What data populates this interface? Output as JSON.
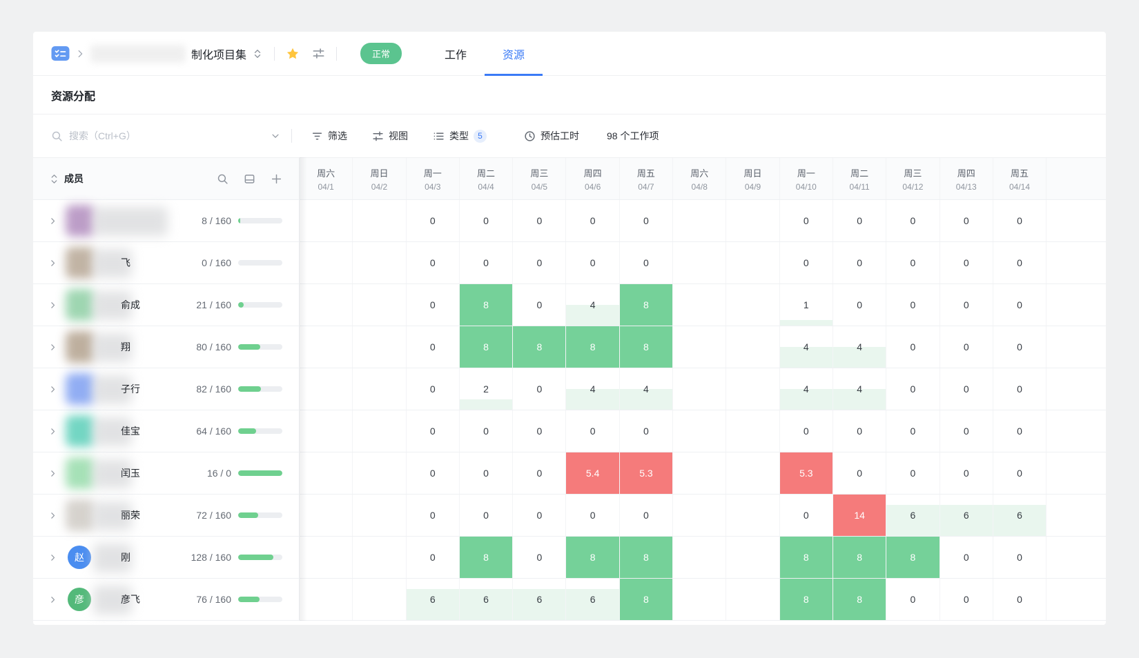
{
  "colors": {
    "blue": "#3a7af6",
    "green_cell": "#75d199",
    "red_cell": "#f57b7b",
    "tint_green": "#e9f6ee",
    "pill_green": "#5bc48f",
    "progress_green": "#6fd08f",
    "star_yellow": "#ffc53d"
  },
  "topbar": {
    "project_icon": "project-set-icon",
    "project_title": "制化项目集",
    "status_label": "正常",
    "tabs": [
      {
        "label": "工作"
      },
      {
        "label": "资源"
      }
    ]
  },
  "section": {
    "title": "资源分配"
  },
  "toolbar": {
    "search_placeholder": "搜索（Ctrl+G）",
    "filter": "筛选",
    "view": "视图",
    "type": "类型",
    "type_badge": "5",
    "estimate": "预估工时",
    "work_items": "98 个工作项"
  },
  "table": {
    "member_header": "成员",
    "columns": [
      {
        "weekday": "周六",
        "date": "04/1",
        "weekend": true
      },
      {
        "weekday": "周日",
        "date": "04/2",
        "weekend": true
      },
      {
        "weekday": "周一",
        "date": "04/3",
        "weekend": false
      },
      {
        "weekday": "周二",
        "date": "04/4",
        "weekend": false
      },
      {
        "weekday": "周三",
        "date": "04/5",
        "weekend": false
      },
      {
        "weekday": "周四",
        "date": "04/6",
        "weekend": false
      },
      {
        "weekday": "周五",
        "date": "04/7",
        "weekend": false
      },
      {
        "weekday": "周六",
        "date": "04/8",
        "weekend": true
      },
      {
        "weekday": "周日",
        "date": "04/9",
        "weekend": true
      },
      {
        "weekday": "周一",
        "date": "04/10",
        "weekend": false
      },
      {
        "weekday": "周二",
        "date": "04/11",
        "weekend": false
      },
      {
        "weekday": "周三",
        "date": "04/12",
        "weekend": false
      },
      {
        "weekday": "周四",
        "date": "04/13",
        "weekend": false
      },
      {
        "weekday": "周五",
        "date": "04/14",
        "weekend": false
      }
    ],
    "members": [
      {
        "name": "",
        "alloc": "8 / 160",
        "progress": 5,
        "avatar": {
          "kind": "block",
          "color": "#b18cbe"
        },
        "cells": [
          [
            "e"
          ],
          [
            "e"
          ],
          [
            "z",
            "0"
          ],
          [
            "z",
            "0"
          ],
          [
            "z",
            "0"
          ],
          [
            "z",
            "0"
          ],
          [
            "z",
            "0"
          ],
          [
            "e"
          ],
          [
            "e"
          ],
          [
            "z",
            "0"
          ],
          [
            "z",
            "0"
          ],
          [
            "z",
            "0"
          ],
          [
            "z",
            "0"
          ],
          [
            "z",
            "0"
          ]
        ]
      },
      {
        "name": "飞",
        "alloc": "0 / 160",
        "progress": 0,
        "avatar": {
          "kind": "block",
          "color": "#b7a795"
        },
        "cells": [
          [
            "e"
          ],
          [
            "e"
          ],
          [
            "z",
            "0"
          ],
          [
            "z",
            "0"
          ],
          [
            "z",
            "0"
          ],
          [
            "z",
            "0"
          ],
          [
            "z",
            "0"
          ],
          [
            "e"
          ],
          [
            "e"
          ],
          [
            "z",
            "0"
          ],
          [
            "z",
            "0"
          ],
          [
            "z",
            "0"
          ],
          [
            "z",
            "0"
          ],
          [
            "z",
            "0"
          ]
        ]
      },
      {
        "name": "俞成",
        "alloc": "21 / 160",
        "progress": 13,
        "avatar": {
          "kind": "block",
          "color": "#8ecfa4"
        },
        "cells": [
          [
            "e"
          ],
          [
            "e"
          ],
          [
            "z",
            "0"
          ],
          [
            "f",
            "8"
          ],
          [
            "z",
            "0"
          ],
          [
            "p",
            "4",
            0.5
          ],
          [
            "f",
            "8"
          ],
          [
            "e"
          ],
          [
            "e"
          ],
          [
            "p",
            "1",
            0.125
          ],
          [
            "z",
            "0"
          ],
          [
            "z",
            "0"
          ],
          [
            "z",
            "0"
          ],
          [
            "z",
            "0"
          ]
        ]
      },
      {
        "name": "翔",
        "alloc": "80 / 160",
        "progress": 50,
        "avatar": {
          "kind": "block",
          "color": "#b3a28e"
        },
        "cells": [
          [
            "e"
          ],
          [
            "e"
          ],
          [
            "z",
            "0"
          ],
          [
            "f",
            "8"
          ],
          [
            "f",
            "8"
          ],
          [
            "f",
            "8"
          ],
          [
            "f",
            "8"
          ],
          [
            "e"
          ],
          [
            "e"
          ],
          [
            "p",
            "4",
            0.5
          ],
          [
            "p",
            "4",
            0.5
          ],
          [
            "z",
            "0"
          ],
          [
            "z",
            "0"
          ],
          [
            "z",
            "0"
          ]
        ]
      },
      {
        "name": "子行",
        "alloc": "82 / 160",
        "progress": 51,
        "avatar": {
          "kind": "block",
          "color": "#7e9ff1"
        },
        "cells": [
          [
            "e"
          ],
          [
            "e"
          ],
          [
            "z",
            "0"
          ],
          [
            "p",
            "2",
            0.25
          ],
          [
            "z",
            "0"
          ],
          [
            "p",
            "4",
            0.5
          ],
          [
            "p",
            "4",
            0.5
          ],
          [
            "e"
          ],
          [
            "e"
          ],
          [
            "p",
            "4",
            0.5
          ],
          [
            "p",
            "4",
            0.5
          ],
          [
            "z",
            "0"
          ],
          [
            "z",
            "0"
          ],
          [
            "z",
            "0"
          ]
        ]
      },
      {
        "name": "佳宝",
        "alloc": "64 / 160",
        "progress": 40,
        "avatar": {
          "kind": "block",
          "color": "#5bcfb9"
        },
        "cells": [
          [
            "e"
          ],
          [
            "e"
          ],
          [
            "z",
            "0"
          ],
          [
            "z",
            "0"
          ],
          [
            "z",
            "0"
          ],
          [
            "z",
            "0"
          ],
          [
            "z",
            "0"
          ],
          [
            "e"
          ],
          [
            "e"
          ],
          [
            "z",
            "0"
          ],
          [
            "z",
            "0"
          ],
          [
            "z",
            "0"
          ],
          [
            "z",
            "0"
          ],
          [
            "z",
            "0"
          ]
        ]
      },
      {
        "name": "闰玉",
        "alloc": "16 / 0",
        "progress": 100,
        "avatar": {
          "kind": "block",
          "color": "#97dcab"
        },
        "cells": [
          [
            "e"
          ],
          [
            "e"
          ],
          [
            "z",
            "0"
          ],
          [
            "z",
            "0"
          ],
          [
            "z",
            "0"
          ],
          [
            "o",
            "5.4"
          ],
          [
            "o",
            "5.3"
          ],
          [
            "e"
          ],
          [
            "e"
          ],
          [
            "o",
            "5.3"
          ],
          [
            "z",
            "0"
          ],
          [
            "z",
            "0"
          ],
          [
            "z",
            "0"
          ],
          [
            "z",
            "0"
          ]
        ]
      },
      {
        "name": "丽荣",
        "alloc": "72 / 160",
        "progress": 45,
        "avatar": {
          "kind": "block",
          "color": "#cfcbc5"
        },
        "cells": [
          [
            "e"
          ],
          [
            "e"
          ],
          [
            "z",
            "0"
          ],
          [
            "z",
            "0"
          ],
          [
            "z",
            "0"
          ],
          [
            "z",
            "0"
          ],
          [
            "z",
            "0"
          ],
          [
            "e"
          ],
          [
            "e"
          ],
          [
            "z",
            "0"
          ],
          [
            "o",
            "14"
          ],
          [
            "p",
            "6",
            0.75
          ],
          [
            "p",
            "6",
            0.75
          ],
          [
            "p",
            "6",
            0.75
          ]
        ]
      },
      {
        "name": "刚",
        "alloc": "128 / 160",
        "progress": 80,
        "avatar": {
          "kind": "circle",
          "color": "#4a8df0",
          "label": "赵"
        },
        "cells": [
          [
            "e"
          ],
          [
            "e"
          ],
          [
            "z",
            "0"
          ],
          [
            "f",
            "8"
          ],
          [
            "z",
            "0"
          ],
          [
            "f",
            "8"
          ],
          [
            "f",
            "8"
          ],
          [
            "e"
          ],
          [
            "e"
          ],
          [
            "f",
            "8"
          ],
          [
            "f",
            "8"
          ],
          [
            "f",
            "8"
          ],
          [
            "z",
            "0"
          ],
          [
            "z",
            "0"
          ]
        ]
      },
      {
        "name": "彦飞",
        "alloc": "76 / 160",
        "progress": 48,
        "avatar": {
          "kind": "circle",
          "color": "#53b97a",
          "label": "彦"
        },
        "cells": [
          [
            "e"
          ],
          [
            "e"
          ],
          [
            "p",
            "6",
            0.75
          ],
          [
            "p",
            "6",
            0.75
          ],
          [
            "p",
            "6",
            0.75
          ],
          [
            "p",
            "6",
            0.75
          ],
          [
            "f",
            "8"
          ],
          [
            "e"
          ],
          [
            "e"
          ],
          [
            "f",
            "8"
          ],
          [
            "f",
            "8"
          ],
          [
            "z",
            "0"
          ],
          [
            "z",
            "0"
          ],
          [
            "z",
            "0"
          ]
        ]
      }
    ]
  }
}
